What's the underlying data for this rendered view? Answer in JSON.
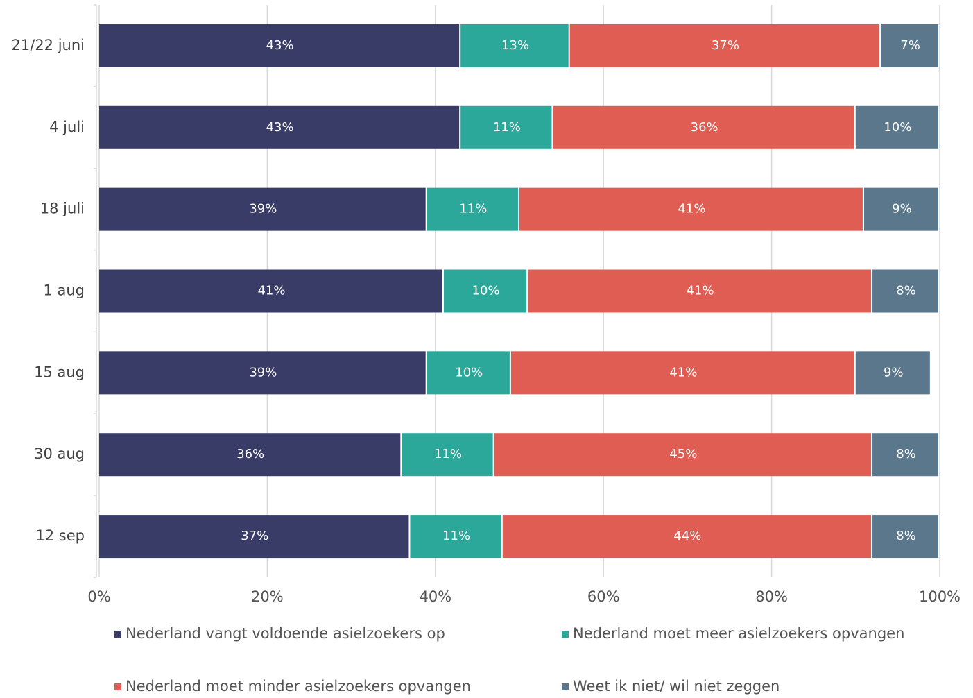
{
  "chart_data": {
    "type": "bar",
    "orientation": "horizontal",
    "stacked": true,
    "grid": true,
    "categories": [
      "21/22 juni",
      "4 juli",
      "18 juli",
      "1 aug",
      "15 aug",
      "30 aug",
      "12 sep"
    ],
    "series": [
      {
        "name": "Nederland vangt voldoende asielzoekers op",
        "color": "#383c66",
        "values": [
          43,
          43,
          39,
          41,
          39,
          36,
          37
        ],
        "value_labels": [
          "43%",
          "43%",
          "39%",
          "41%",
          "39%",
          "36%",
          "37%"
        ]
      },
      {
        "name": "Nederland moet meer asielzoekers opvangen",
        "color": "#2ba89a",
        "values": [
          13,
          11,
          11,
          10,
          10,
          11,
          11
        ],
        "value_labels": [
          "13%",
          "11%",
          "11%",
          "10%",
          "10%",
          "11%",
          "11%"
        ]
      },
      {
        "name": "Nederland moet minder asielzoekers opvangen",
        "color": "#df5d52",
        "values": [
          37,
          36,
          41,
          41,
          41,
          45,
          44
        ],
        "value_labels": [
          "37%",
          "36%",
          "41%",
          "41%",
          "41%",
          "45%",
          "44%"
        ]
      },
      {
        "name": "Weet ik niet/ wil niet zeggen",
        "color": "#5b778c",
        "values": [
          7,
          10,
          9,
          8,
          9,
          8,
          8
        ],
        "value_labels": [
          "7%",
          "10%",
          "9%",
          "8%",
          "9%",
          "8%",
          "8%"
        ]
      }
    ],
    "xlim": [
      0,
      100
    ],
    "xticks": [
      {
        "value": 0,
        "label": "0%"
      },
      {
        "value": 20,
        "label": "20%"
      },
      {
        "value": 40,
        "label": "40%"
      },
      {
        "value": 60,
        "label": "60%"
      },
      {
        "value": 80,
        "label": "80%"
      },
      {
        "value": 100,
        "label": "100%"
      }
    ]
  }
}
